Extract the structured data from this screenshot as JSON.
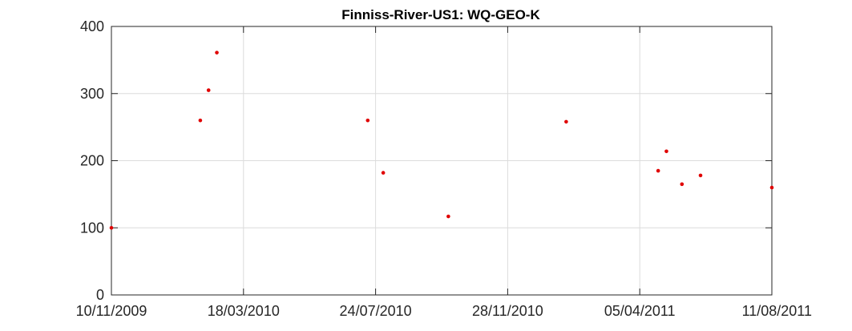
{
  "chart_data": {
    "type": "scatter",
    "title": "Finniss-River-US1: WQ-GEO-K",
    "xlabel": "",
    "ylabel": "",
    "x_ticks": [
      "10/11/2009",
      "18/03/2010",
      "24/07/2010",
      "28/11/2010",
      "05/04/2011",
      "11/08/2011"
    ],
    "xlim": [
      "2009-11-10",
      "2011-08-11"
    ],
    "ylim": [
      0,
      400
    ],
    "y_ticks": [
      "0",
      "100",
      "200",
      "300",
      "400"
    ],
    "grid": true,
    "marker_color": "#e00000",
    "series": [
      {
        "points": [
          {
            "x": "2009-11-10",
            "y": 100
          },
          {
            "x": "2010-02-04",
            "y": 260
          },
          {
            "x": "2010-02-12",
            "y": 305
          },
          {
            "x": "2010-02-20",
            "y": 361
          },
          {
            "x": "2010-07-16",
            "y": 260
          },
          {
            "x": "2010-07-31",
            "y": 182
          },
          {
            "x": "2010-10-02",
            "y": 117
          },
          {
            "x": "2011-01-24",
            "y": 258
          },
          {
            "x": "2011-04-23",
            "y": 185
          },
          {
            "x": "2011-05-01",
            "y": 214
          },
          {
            "x": "2011-05-16",
            "y": 165
          },
          {
            "x": "2011-06-03",
            "y": 178
          },
          {
            "x": "2011-08-11",
            "y": 160
          }
        ]
      }
    ]
  }
}
